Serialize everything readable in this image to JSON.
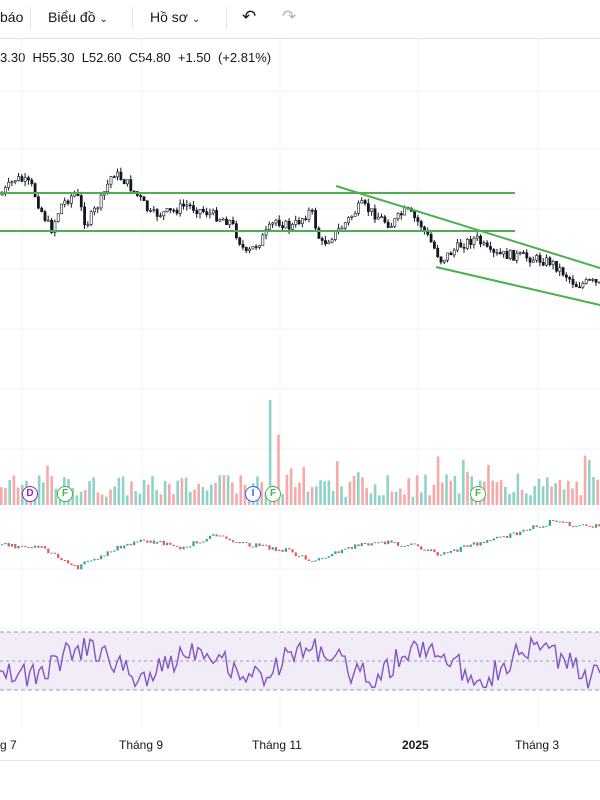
{
  "toolbar": {
    "alert_label": "báo",
    "chart_label": "Biểu đồ",
    "profile_label": "Hồ sơ",
    "undo_icon": "undo-icon",
    "redo_icon": "redo-icon"
  },
  "legend": {
    "open": "3.30",
    "high": "H55.30",
    "low": "L52.60",
    "close": "C54.80",
    "change": "+1.50",
    "change_pct": "(+2.81%)"
  },
  "colors": {
    "up": "#26a69a",
    "down": "#ef5350",
    "trendline": "#4caf50",
    "rsi": "#7e57c2",
    "rsi_band": "#ede7f6",
    "grid": "#f0f3fa"
  },
  "markers": [
    {
      "letter": "D",
      "color": "#9c27b0"
    },
    {
      "letter": "F",
      "color": "#4caf50"
    },
    {
      "letter": "I",
      "color": "#2962ff"
    },
    {
      "letter": "F",
      "color": "#4caf50"
    },
    {
      "letter": "F",
      "color": "#4caf50"
    }
  ],
  "x_axis": {
    "labels": [
      "g 7",
      "Tháng 9",
      "Tháng 11",
      "2025",
      "Tháng 3"
    ]
  }
}
